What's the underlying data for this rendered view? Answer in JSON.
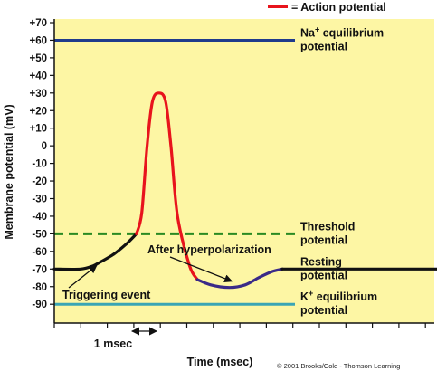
{
  "chart_data": {
    "type": "line",
    "ylabel": "Membrane potential (mV)",
    "xlabel": "Time (msec)",
    "ylim": [
      -100,
      70
    ],
    "yticks": [
      "+70",
      "+60",
      "+50",
      "+40",
      "+30",
      "+20",
      "+10",
      "0",
      "-10",
      "-20",
      "-30",
      "-40",
      "-50",
      "-60",
      "-70",
      "-80",
      "-90"
    ],
    "y_tick_values": [
      70,
      60,
      50,
      40,
      30,
      20,
      10,
      0,
      -10,
      -20,
      -30,
      -40,
      -50,
      -60,
      -70,
      -80,
      -90
    ],
    "xlim": [
      0,
      14.5
    ],
    "x_ticks_msec": [
      0,
      1,
      2,
      3,
      4,
      5,
      6,
      7,
      8,
      9,
      10,
      11,
      12,
      13,
      14
    ],
    "grid": false,
    "legend": {
      "position": "top-right",
      "swatch_color": "#e8141c",
      "label": "= Action potential"
    },
    "reference_lines": [
      {
        "label_main": "Na",
        "label_sup": "+",
        "label_rest": " equilibrium",
        "label_line2": "potential",
        "y": 60,
        "color": "#1f3b8c",
        "dash": false
      },
      {
        "label_main": "Threshold",
        "label_sup": "",
        "label_rest": "",
        "label_line2": "potential",
        "y": -50,
        "color": "#2a8a22",
        "dash": true
      },
      {
        "label_main": "Resting",
        "label_sup": "",
        "label_rest": "",
        "label_line2": "potential",
        "y": -70,
        "color": "#111111",
        "dash": false
      },
      {
        "label_main": "K",
        "label_sup": "+",
        "label_rest": " equilibrium",
        "label_line2": "potential",
        "y": -90,
        "color": "#3aa5b5",
        "dash": false
      }
    ],
    "series": [
      {
        "role": "resting-before",
        "color": "#111111",
        "points": [
          [
            0,
            -70
          ],
          [
            1,
            -70
          ],
          [
            1.5,
            -68
          ]
        ]
      },
      {
        "role": "triggering-event",
        "color": "#111111",
        "points": [
          [
            1.5,
            -68
          ],
          [
            2.2,
            -62
          ],
          [
            2.7,
            -56
          ],
          [
            3.1,
            -50
          ]
        ]
      },
      {
        "role": "action-potential",
        "color": "#e8141c",
        "points": [
          [
            3.1,
            -50
          ],
          [
            3.3,
            -38
          ],
          [
            3.5,
            0
          ],
          [
            3.7,
            25
          ],
          [
            3.95,
            30
          ],
          [
            4.2,
            25
          ],
          [
            4.4,
            0
          ],
          [
            4.65,
            -40
          ],
          [
            5.1,
            -68
          ],
          [
            5.4,
            -76
          ]
        ]
      },
      {
        "role": "after-hyperpolarization",
        "color": "#3a2a88",
        "points": [
          [
            5.4,
            -76
          ],
          [
            5.9,
            -79
          ],
          [
            6.6,
            -80.5
          ],
          [
            7.2,
            -79
          ],
          [
            7.7,
            -75
          ],
          [
            8.2,
            -71.5
          ],
          [
            8.6,
            -70
          ]
        ]
      },
      {
        "role": "resting-after",
        "color": "#111111",
        "points": [
          [
            8.6,
            -70
          ],
          [
            14.5,
            -70
          ]
        ]
      }
    ],
    "annotations": [
      {
        "text": "After hyperpolarization",
        "anchor": [
          6.7,
          -79
        ]
      },
      {
        "text": "Triggering event",
        "anchor": [
          1.8,
          -66
        ]
      }
    ],
    "scale_marker": {
      "label": "1 msec",
      "from": 3,
      "to": 4
    },
    "credit": "© 2001 Brooks/Cole - Thomson Learning"
  }
}
